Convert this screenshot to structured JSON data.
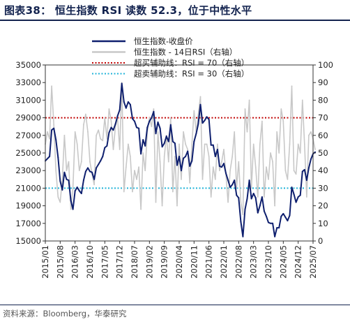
{
  "header": {
    "title": "图表38：  恒生指数 RSI 读数 52.3，位于中性水平"
  },
  "footer": {
    "source": "资料来源：Bloomberg，华泰研究"
  },
  "colors": {
    "hsi_line": "#0e1f6e",
    "rsi_line": "#c8c8c8",
    "overbought": "#c00000",
    "oversold": "#1fb3d8",
    "title": "#13234f"
  },
  "chart_data": {
    "type": "line",
    "title": "",
    "legend_position": "top-right",
    "x_ticks": [
      "2015/01",
      "2015/08",
      "2016/03",
      "2016/10",
      "2017/05",
      "2017/12",
      "2018/07",
      "2019/02",
      "2019/09",
      "2020/04",
      "2020/11",
      "2021/06",
      "2022/01",
      "2022/08",
      "2023/03",
      "2023/10",
      "2024/05",
      "2024/12",
      "2025/07"
    ],
    "left_axis": {
      "min": 15000,
      "max": 35000,
      "ticks": [
        15000,
        17000,
        19000,
        21000,
        23000,
        25000,
        27000,
        29000,
        31000,
        33000,
        35000
      ]
    },
    "right_axis": {
      "min": 0,
      "max": 100,
      "ticks": [
        0,
        10,
        20,
        30,
        40,
        50,
        60,
        70,
        80,
        90,
        100
      ]
    },
    "series": [
      {
        "name": "恒生指数-收盘价",
        "axis": "left",
        "style": "solid",
        "points": [
          [
            "2015/01",
            24100
          ],
          [
            "2015/03",
            24600
          ],
          [
            "2015/04",
            27600
          ],
          [
            "2015/05",
            27800
          ],
          [
            "2015/06",
            26500
          ],
          [
            "2015/07",
            24500
          ],
          [
            "2015/08",
            21800
          ],
          [
            "2015/09",
            20800
          ],
          [
            "2015/10",
            22800
          ],
          [
            "2015/11",
            22000
          ],
          [
            "2015/12",
            21900
          ],
          [
            "2016/01",
            19600
          ],
          [
            "2016/02",
            18600
          ],
          [
            "2016/03",
            20700
          ],
          [
            "2016/04",
            21100
          ],
          [
            "2016/05",
            20700
          ],
          [
            "2016/06",
            20400
          ],
          [
            "2016/07",
            21900
          ],
          [
            "2016/08",
            22900
          ],
          [
            "2016/09",
            23300
          ],
          [
            "2016/10",
            22900
          ],
          [
            "2016/11",
            22800
          ],
          [
            "2016/12",
            22000
          ],
          [
            "2017/01",
            23300
          ],
          [
            "2017/02",
            23700
          ],
          [
            "2017/03",
            24100
          ],
          [
            "2017/04",
            24600
          ],
          [
            "2017/05",
            25600
          ],
          [
            "2017/06",
            25800
          ],
          [
            "2017/07",
            27300
          ],
          [
            "2017/08",
            27900
          ],
          [
            "2017/09",
            27600
          ],
          [
            "2017/10",
            28300
          ],
          [
            "2017/11",
            29200
          ],
          [
            "2017/12",
            29900
          ],
          [
            "2018/01",
            32900
          ],
          [
            "2018/02",
            30800
          ],
          [
            "2018/03",
            30100
          ],
          [
            "2018/04",
            30800
          ],
          [
            "2018/05",
            30500
          ],
          [
            "2018/06",
            28900
          ],
          [
            "2018/07",
            28600
          ],
          [
            "2018/08",
            27900
          ],
          [
            "2018/09",
            27800
          ],
          [
            "2018/10",
            24900
          ],
          [
            "2018/11",
            26500
          ],
          [
            "2018/12",
            25800
          ],
          [
            "2019/01",
            27900
          ],
          [
            "2019/02",
            28600
          ],
          [
            "2019/03",
            29000
          ],
          [
            "2019/04",
            29700
          ],
          [
            "2019/05",
            27200
          ],
          [
            "2019/06",
            28500
          ],
          [
            "2019/07",
            27800
          ],
          [
            "2019/08",
            25700
          ],
          [
            "2019/09",
            26100
          ],
          [
            "2019/10",
            26900
          ],
          [
            "2019/11",
            26300
          ],
          [
            "2019/12",
            28200
          ],
          [
            "2020/01",
            26300
          ],
          [
            "2020/02",
            26100
          ],
          [
            "2020/03",
            23600
          ],
          [
            "2020/04",
            24600
          ],
          [
            "2020/05",
            23000
          ],
          [
            "2020/06",
            24400
          ],
          [
            "2020/07",
            24600
          ],
          [
            "2020/08",
            25200
          ],
          [
            "2020/09",
            23500
          ],
          [
            "2020/10",
            24100
          ],
          [
            "2020/11",
            26300
          ],
          [
            "2020/12",
            27200
          ],
          [
            "2021/01",
            28300
          ],
          [
            "2021/02",
            30500
          ],
          [
            "2021/03",
            28400
          ],
          [
            "2021/04",
            28700
          ],
          [
            "2021/05",
            29100
          ],
          [
            "2021/06",
            28800
          ],
          [
            "2021/07",
            25900
          ],
          [
            "2021/08",
            25900
          ],
          [
            "2021/09",
            24600
          ],
          [
            "2021/10",
            25400
          ],
          [
            "2021/11",
            23500
          ],
          [
            "2021/12",
            23400
          ],
          [
            "2022/01",
            23800
          ],
          [
            "2022/02",
            22700
          ],
          [
            "2022/03",
            21900
          ],
          [
            "2022/04",
            21100
          ],
          [
            "2022/05",
            21400
          ],
          [
            "2022/06",
            21900
          ],
          [
            "2022/07",
            20200
          ],
          [
            "2022/08",
            19900
          ],
          [
            "2022/09",
            17200
          ],
          [
            "2022/10",
            15500
          ],
          [
            "2022/11",
            18600
          ],
          [
            "2022/12",
            19800
          ],
          [
            "2023/01",
            21900
          ],
          [
            "2023/02",
            19800
          ],
          [
            "2023/03",
            20400
          ],
          [
            "2023/04",
            19900
          ],
          [
            "2023/05",
            18200
          ],
          [
            "2023/06",
            19000
          ],
          [
            "2023/07",
            20000
          ],
          [
            "2023/08",
            18400
          ],
          [
            "2023/09",
            17800
          ],
          [
            "2023/10",
            17100
          ],
          [
            "2023/11",
            17000
          ],
          [
            "2023/12",
            17000
          ],
          [
            "2024/01",
            15500
          ],
          [
            "2024/02",
            16500
          ],
          [
            "2024/03",
            16500
          ],
          [
            "2024/04",
            17800
          ],
          [
            "2024/05",
            18100
          ],
          [
            "2024/06",
            17700
          ],
          [
            "2024/07",
            17300
          ],
          [
            "2024/08",
            17900
          ],
          [
            "2024/09",
            21100
          ],
          [
            "2024/10",
            20300
          ],
          [
            "2024/11",
            19400
          ],
          [
            "2024/12",
            20000
          ],
          [
            "2025/01",
            20200
          ],
          [
            "2025/02",
            22900
          ],
          [
            "2025/03",
            23100
          ],
          [
            "2025/04",
            21900
          ],
          [
            "2025/05",
            23300
          ],
          [
            "2025/06",
            24300
          ],
          [
            "2025/07",
            24900
          ],
          [
            "2025/08",
            25100
          ]
        ]
      },
      {
        "name": "恒生指数 - 14日RSI（右轴）",
        "axis": "right",
        "style": "solid",
        "points": [
          [
            "2015/01",
            55
          ],
          [
            "2015/02",
            62
          ],
          [
            "2015/03",
            58
          ],
          [
            "2015/04",
            88
          ],
          [
            "2015/05",
            66
          ],
          [
            "2015/06",
            40
          ],
          [
            "2015/07",
            25
          ],
          [
            "2015/08",
            22
          ],
          [
            "2015/09",
            35
          ],
          [
            "2015/10",
            60
          ],
          [
            "2015/11",
            40
          ],
          [
            "2015/12",
            45
          ],
          [
            "2016/01",
            18
          ],
          [
            "2016/02",
            30
          ],
          [
            "2016/03",
            62
          ],
          [
            "2016/04",
            55
          ],
          [
            "2016/05",
            40
          ],
          [
            "2016/06",
            45
          ],
          [
            "2016/07",
            66
          ],
          [
            "2016/08",
            72
          ],
          [
            "2016/09",
            62
          ],
          [
            "2016/10",
            45
          ],
          [
            "2016/11",
            38
          ],
          [
            "2016/12",
            32
          ],
          [
            "2017/01",
            60
          ],
          [
            "2017/02",
            63
          ],
          [
            "2017/03",
            58
          ],
          [
            "2017/04",
            57
          ],
          [
            "2017/05",
            70
          ],
          [
            "2017/06",
            58
          ],
          [
            "2017/07",
            75
          ],
          [
            "2017/08",
            68
          ],
          [
            "2017/09",
            52
          ],
          [
            "2017/10",
            65
          ],
          [
            "2017/11",
            70
          ],
          [
            "2017/12",
            52
          ],
          [
            "2018/01",
            90
          ],
          [
            "2018/02",
            28
          ],
          [
            "2018/03",
            42
          ],
          [
            "2018/04",
            55
          ],
          [
            "2018/05",
            48
          ],
          [
            "2018/06",
            28
          ],
          [
            "2018/07",
            40
          ],
          [
            "2018/08",
            35
          ],
          [
            "2018/09",
            42
          ],
          [
            "2018/10",
            18
          ],
          [
            "2018/11",
            50
          ],
          [
            "2018/12",
            40
          ],
          [
            "2019/01",
            62
          ],
          [
            "2019/02",
            70
          ],
          [
            "2019/03",
            65
          ],
          [
            "2019/04",
            75
          ],
          [
            "2019/05",
            22
          ],
          [
            "2019/06",
            62
          ],
          [
            "2019/07",
            45
          ],
          [
            "2019/08",
            20
          ],
          [
            "2019/09",
            48
          ],
          [
            "2019/10",
            60
          ],
          [
            "2019/11",
            45
          ],
          [
            "2019/12",
            70
          ],
          [
            "2020/01",
            28
          ],
          [
            "2020/02",
            48
          ],
          [
            "2020/03",
            20
          ],
          [
            "2020/04",
            55
          ],
          [
            "2020/05",
            35
          ],
          [
            "2020/06",
            62
          ],
          [
            "2020/07",
            55
          ],
          [
            "2020/08",
            52
          ],
          [
            "2020/09",
            33
          ],
          [
            "2020/10",
            55
          ],
          [
            "2020/11",
            74
          ],
          [
            "2020/12",
            62
          ],
          [
            "2021/01",
            72
          ],
          [
            "2021/02",
            82
          ],
          [
            "2021/03",
            35
          ],
          [
            "2021/04",
            55
          ],
          [
            "2021/05",
            55
          ],
          [
            "2021/06",
            48
          ],
          [
            "2021/07",
            25
          ],
          [
            "2021/08",
            42
          ],
          [
            "2021/09",
            35
          ],
          [
            "2021/10",
            55
          ],
          [
            "2021/11",
            40
          ],
          [
            "2021/12",
            45
          ],
          [
            "2022/01",
            52
          ],
          [
            "2022/02",
            38
          ],
          [
            "2022/03",
            22
          ],
          [
            "2022/04",
            40
          ],
          [
            "2022/05",
            48
          ],
          [
            "2022/06",
            62
          ],
          [
            "2022/07",
            30
          ],
          [
            "2022/08",
            45
          ],
          [
            "2022/09",
            22
          ],
          [
            "2022/10",
            15
          ],
          [
            "2022/11",
            75
          ],
          [
            "2022/12",
            62
          ],
          [
            "2023/01",
            80
          ],
          [
            "2023/02",
            30
          ],
          [
            "2023/03",
            55
          ],
          [
            "2023/04",
            42
          ],
          [
            "2023/05",
            25
          ],
          [
            "2023/06",
            55
          ],
          [
            "2023/07",
            68
          ],
          [
            "2023/08",
            25
          ],
          [
            "2023/09",
            42
          ],
          [
            "2023/10",
            35
          ],
          [
            "2023/11",
            50
          ],
          [
            "2023/12",
            45
          ],
          [
            "2024/01",
            20
          ],
          [
            "2024/02",
            62
          ],
          [
            "2024/03",
            50
          ],
          [
            "2024/04",
            75
          ],
          [
            "2024/05",
            68
          ],
          [
            "2024/06",
            40
          ],
          [
            "2024/07",
            35
          ],
          [
            "2024/08",
            55
          ],
          [
            "2024/09",
            88
          ],
          [
            "2024/10",
            40
          ],
          [
            "2024/11",
            38
          ],
          [
            "2024/12",
            55
          ],
          [
            "2025/01",
            50
          ],
          [
            "2025/02",
            80
          ],
          [
            "2025/03",
            55
          ],
          [
            "2025/04",
            25
          ],
          [
            "2025/05",
            60
          ],
          [
            "2025/06",
            62
          ],
          [
            "2025/07",
            58
          ],
          [
            "2025/08",
            52
          ]
        ]
      }
    ],
    "reference_lines": [
      {
        "name": "超买辅助线：RSI = 70（右轴）",
        "axis": "right",
        "value": 70,
        "style": "dotted"
      },
      {
        "name": "超卖辅助线：RSI = 30（右轴）",
        "axis": "right",
        "value": 30,
        "style": "dotted"
      }
    ]
  }
}
